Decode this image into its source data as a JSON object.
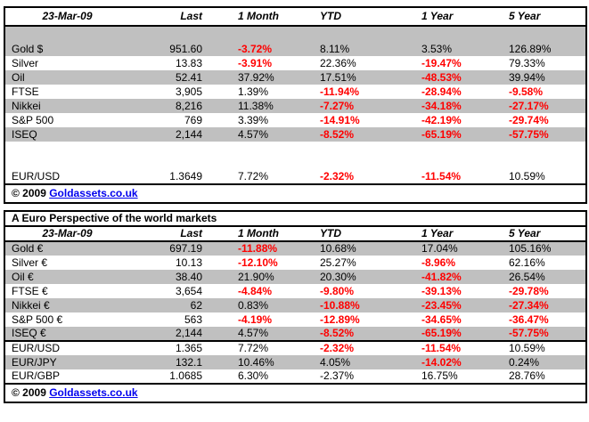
{
  "colors": {
    "background": "#FFFFFF",
    "text": "#000000",
    "border": "#000000",
    "stripe": "#C0C0C0",
    "negative": "#FF0000",
    "link": "#0000EE"
  },
  "chart_data": [
    {
      "type": "table",
      "title": "",
      "columns": [
        "23-Mar-09",
        "Last",
        "1 Month",
        "YTD",
        "1 Year",
        "5 Year"
      ],
      "rows": [
        [
          "Gold $",
          "951.60",
          "-3.72%",
          "8.11%",
          "3.53%",
          "126.89%"
        ],
        [
          "Silver",
          "13.83",
          "-3.91%",
          "22.36%",
          "-19.47%",
          "79.33%"
        ],
        [
          "Oil",
          "52.41",
          "37.92%",
          "17.51%",
          "-48.53%",
          "39.94%"
        ],
        [
          "FTSE",
          "3,905",
          "1.39%",
          "-11.94%",
          "-28.94%",
          "-9.58%"
        ],
        [
          "Nikkei",
          "8,216",
          "11.38%",
          "-7.27%",
          "-34.18%",
          "-27.17%"
        ],
        [
          "S&P 500",
          "769",
          "3.39%",
          "-14.91%",
          "-42.19%",
          "-29.74%"
        ],
        [
          "ISEQ",
          "2,144",
          "4.57%",
          "-8.52%",
          "-65.19%",
          "-57.75%"
        ]
      ],
      "fx_rows": [
        [
          "EUR/USD",
          "1.3649",
          "7.72%",
          "-2.32%",
          "-11.54%",
          "10.59%"
        ]
      ],
      "plain_negative_cells": [],
      "copyright_prefix": "© 2009",
      "copyright_link": "Goldassets.co.uk"
    },
    {
      "type": "table",
      "title": "A Euro Perspective of the world markets",
      "columns": [
        "23-Mar-09",
        "Last",
        "1 Month",
        "YTD",
        "1 Year",
        "5 Year"
      ],
      "rows": [
        [
          "Gold €",
          "697.19",
          "-11.88%",
          "10.68%",
          "17.04%",
          "105.16%"
        ],
        [
          "Silver €",
          "10.13",
          "-12.10%",
          "25.27%",
          "-8.96%",
          "62.16%"
        ],
        [
          "Oil €",
          "38.40",
          "21.90%",
          "20.30%",
          "-41.82%",
          "26.54%"
        ],
        [
          "FTSE €",
          "3,654",
          "-4.84%",
          "-9.80%",
          "-39.13%",
          "-29.78%"
        ],
        [
          "Nikkei €",
          "62",
          "0.83%",
          "-10.88%",
          "-23.45%",
          "-27.34%"
        ],
        [
          "S&P 500 €",
          "563",
          "-4.19%",
          "-12.89%",
          "-34.65%",
          "-36.47%"
        ],
        [
          "ISEQ €",
          "2,144",
          "4.57%",
          "-8.52%",
          "-65.19%",
          "-57.75%"
        ]
      ],
      "fx_rows": [
        [
          "EUR/USD",
          "1.365",
          "7.72%",
          "-2.32%",
          "-11.54%",
          "10.59%"
        ],
        [
          "EUR/JPY",
          "132.1",
          "10.46%",
          "4.05%",
          "-14.02%",
          "0.24%"
        ],
        [
          "EUR/GBP",
          "1.0685",
          "6.30%",
          "-2.37%",
          "16.75%",
          "28.76%"
        ]
      ],
      "plain_negative_cells": [
        {
          "row": "EUR/GBP",
          "column": "YTD"
        }
      ],
      "copyright_prefix": "© 2009",
      "copyright_link": "Goldassets.co.uk"
    }
  ]
}
